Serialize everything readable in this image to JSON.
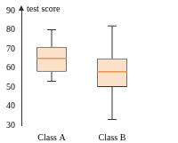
{
  "chart_data": {
    "type": "box",
    "ylabel": "test score",
    "categories": [
      "Class A",
      "Class B"
    ],
    "values": [
      {
        "min": 53,
        "q1": 58,
        "median": 65,
        "q3": 71,
        "max": 80
      },
      {
        "min": 33,
        "q1": 50,
        "median": 58,
        "q3": 65,
        "max": 82
      }
    ],
    "color": "#fde0c8",
    "ylim": [
      30,
      90
    ],
    "yticks": [
      30,
      40,
      50,
      60,
      70,
      80,
      90
    ],
    "grid": false
  }
}
